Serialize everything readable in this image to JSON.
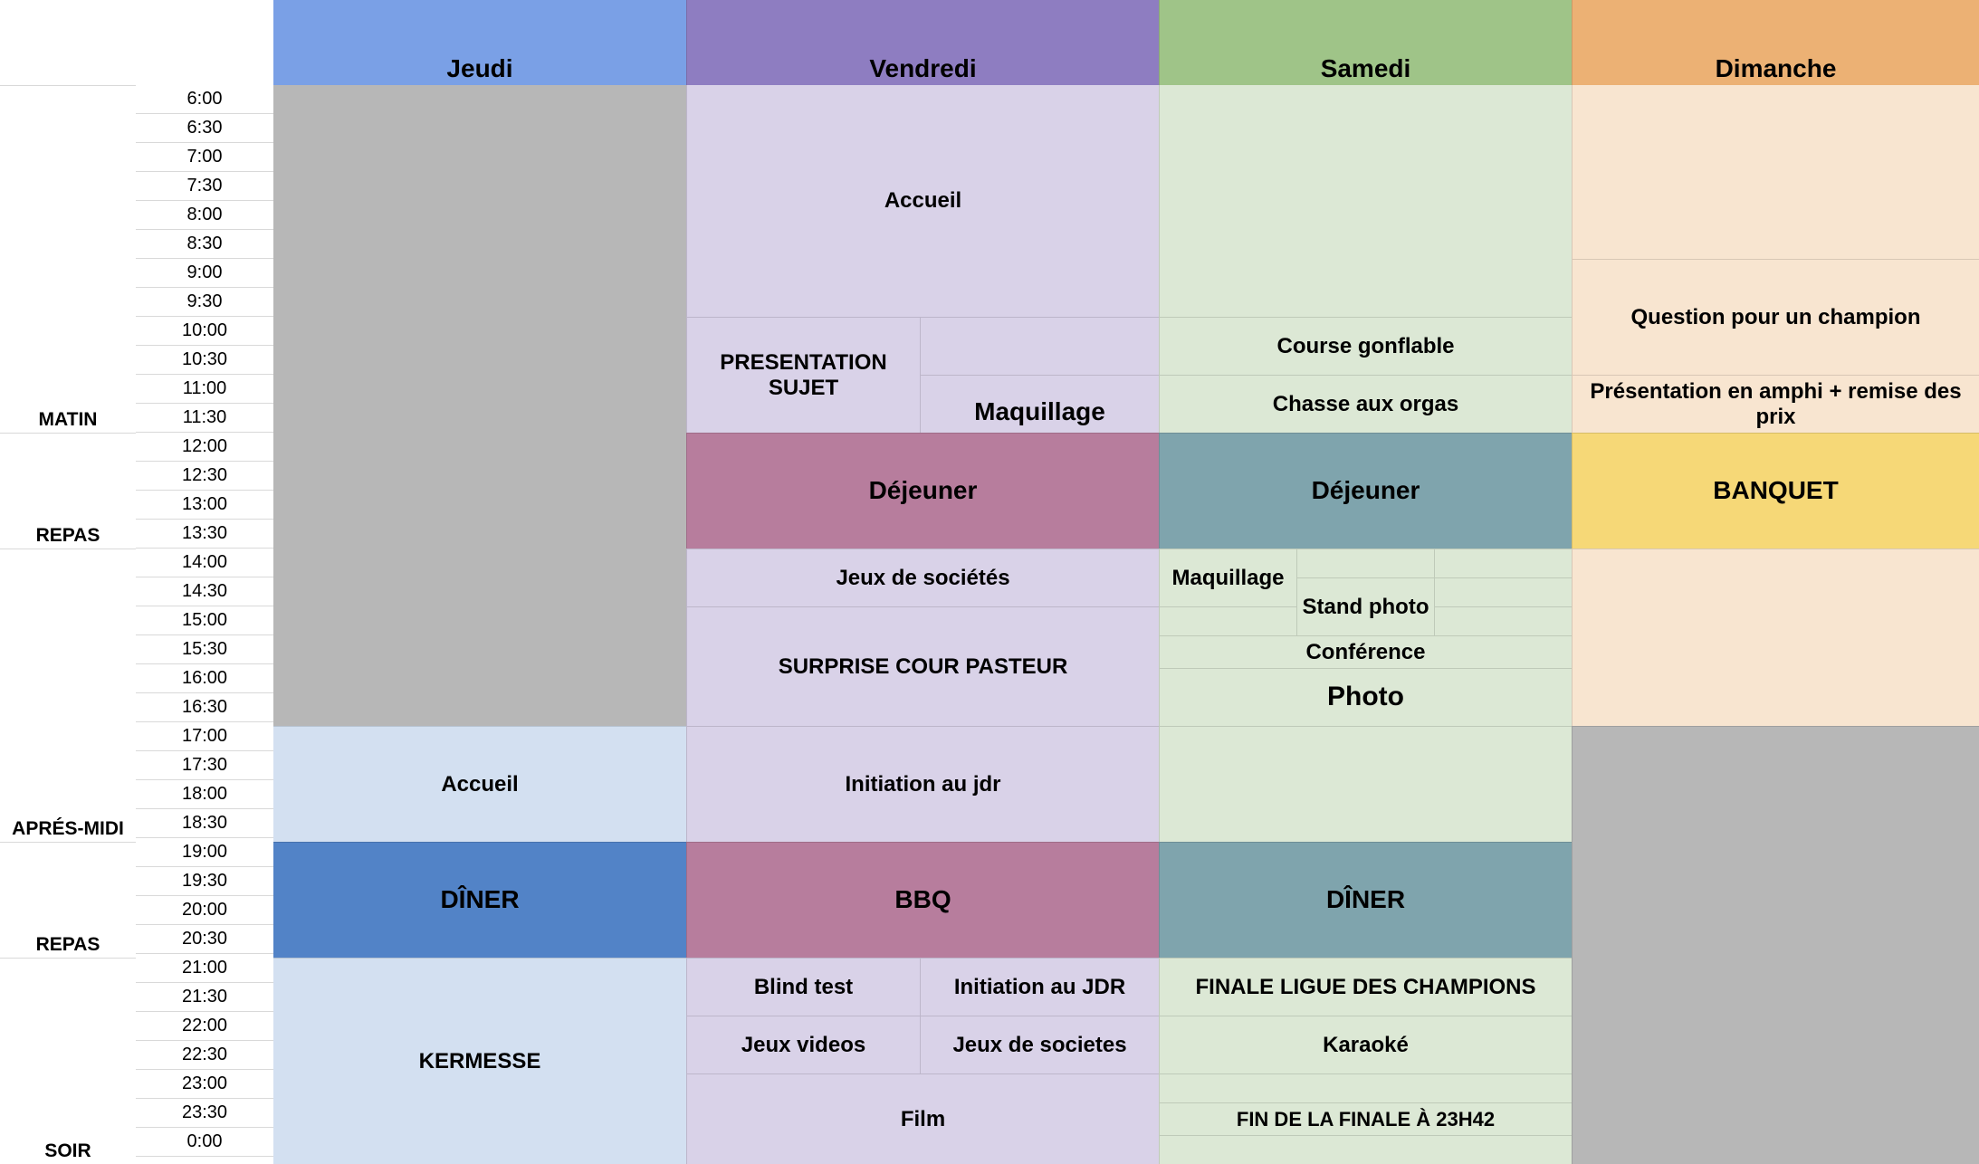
{
  "days": [
    "Jeudi",
    "Vendredi",
    "Samedi",
    "Dimanche"
  ],
  "times": [
    "6:00",
    "6:30",
    "7:00",
    "7:30",
    "8:00",
    "8:30",
    "9:00",
    "9:30",
    "10:00",
    "10:30",
    "11:00",
    "11:30",
    "12:00",
    "12:30",
    "13:00",
    "13:30",
    "14:00",
    "14:30",
    "15:00",
    "15:30",
    "16:00",
    "16:30",
    "17:00",
    "17:30",
    "18:00",
    "18:30",
    "19:00",
    "19:30",
    "20:00",
    "20:30",
    "21:00",
    "21:30",
    "22:00",
    "22:30",
    "23:00",
    "23:30",
    "0:00"
  ],
  "periods": [
    "MATIN",
    "REPAS",
    "APRÉS-MIDI",
    "REPAS",
    "SOIR"
  ],
  "colors": {
    "header_jeudi": "#7aa0e6",
    "header_vendredi": "#8e7dc1",
    "header_samedi": "#9fc488",
    "header_dimanche": "#ecb174",
    "grey": "#b7b7b7",
    "jeudi_light": "#d3e0f1",
    "jeudi_dark": "#5283c7",
    "vendredi_light": "#d9d2e8",
    "vendredi_meal": "#b77d9d",
    "samedi_light": "#dce8d5",
    "samedi_meal": "#7fa4ad",
    "dimanche_light": "#f8e5d0",
    "dimanche_banquet": "#f6d877"
  },
  "events": {
    "vendredi_accueil": "Accueil",
    "presentation_sujet": "PRESENTATION SUJET",
    "maquillage_vendredi": "Maquillage",
    "dejeuner_vendredi": "Déjeuner",
    "jeux_societes": "Jeux de sociétés",
    "surprise_cour": "SURPRISE COUR PASTEUR",
    "initiation_jdr": "Initiation au jdr",
    "bbq": "BBQ",
    "blind_test": "Blind test",
    "initiation_jdr_soir": "Initiation au JDR",
    "jeux_videos": "Jeux videos",
    "jeux_de_societes_soir": "Jeux de societes",
    "film": "Film",
    "jeudi_accueil": "Accueil",
    "jeudi_diner": "DÎNER",
    "kermesse": "KERMESSE",
    "course_gonflable": "Course gonflable",
    "chasse_orgas": "Chasse aux orgas",
    "dejeuner_samedi": "Déjeuner",
    "maquillage_samedi": "Maquillage",
    "stand_photo": "Stand photo",
    "conference": "Conférence",
    "photo": "Photo",
    "samedi_diner": "DÎNER",
    "finale_ligue": "FINALE LIGUE DES CHAMPIONS",
    "karaoke": "Karaoké",
    "fin_finale": "FIN DE LA FINALE À 23H42",
    "question_champion": "Question pour un champion",
    "presentation_amphi": "Présentation en amphi + remise des prix",
    "banquet": "BANQUET"
  }
}
